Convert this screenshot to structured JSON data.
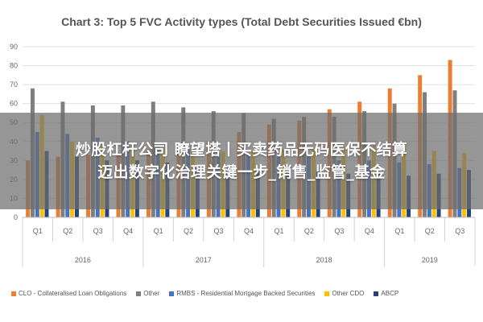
{
  "overlay": {
    "line1": "炒股杠杆公司 瞭望塔丨买卖药品无码医保不结算",
    "line2": "迈出数字化治理关键一步_销售_监管_基金"
  },
  "chart_data": {
    "type": "bar",
    "title": "Chart 3: Top 5 FVC Activity types (Total Debt Securities Issued €bn)",
    "xlabel": "",
    "ylabel": "",
    "ylim": [
      0,
      90
    ],
    "yticks": [
      0,
      10,
      20,
      30,
      40,
      50,
      60,
      70,
      80,
      90
    ],
    "grid": true,
    "legend_position": "bottom",
    "categories": [
      "Q1",
      "Q2",
      "Q3",
      "Q4",
      "Q1",
      "Q2",
      "Q3",
      "Q4",
      "Q1",
      "Q2",
      "Q3",
      "Q4",
      "Q1",
      "Q2",
      "Q3"
    ],
    "groups": [
      {
        "label": "2016",
        "count": 4
      },
      {
        "label": "2017",
        "count": 4
      },
      {
        "label": "2018",
        "count": 4
      },
      {
        "label": "2019",
        "count": 3
      }
    ],
    "series": [
      {
        "name": "CLO - Collateralised Loan Obligations",
        "color": "#ED7D31",
        "values": [
          30,
          32,
          33,
          34,
          36,
          38,
          40,
          45,
          49,
          51,
          57,
          61,
          68,
          75,
          83
        ]
      },
      {
        "name": "Other",
        "color": "#7F7F7F",
        "values": [
          68,
          61,
          59,
          59,
          61,
          58,
          56,
          55,
          52,
          53,
          53,
          56,
          60,
          66,
          67
        ]
      },
      {
        "name": "RMBS - Residential Mortgage Backed Securities",
        "color": "#4472C4",
        "values": [
          45,
          44,
          42,
          40,
          38,
          36,
          34,
          33,
          32,
          32,
          30,
          30,
          29,
          28,
          26
        ]
      },
      {
        "name": "Other CDO",
        "color": "#FFC000",
        "values": [
          54,
          40,
          38,
          38,
          37,
          36,
          35,
          35,
          36,
          37,
          37,
          38,
          38,
          35,
          34
        ]
      },
      {
        "name": "ABCP",
        "color": "#264478",
        "values": [
          35,
          32,
          30,
          30,
          29,
          27,
          26,
          25,
          24,
          24,
          23,
          23,
          22,
          23,
          25
        ]
      }
    ]
  }
}
